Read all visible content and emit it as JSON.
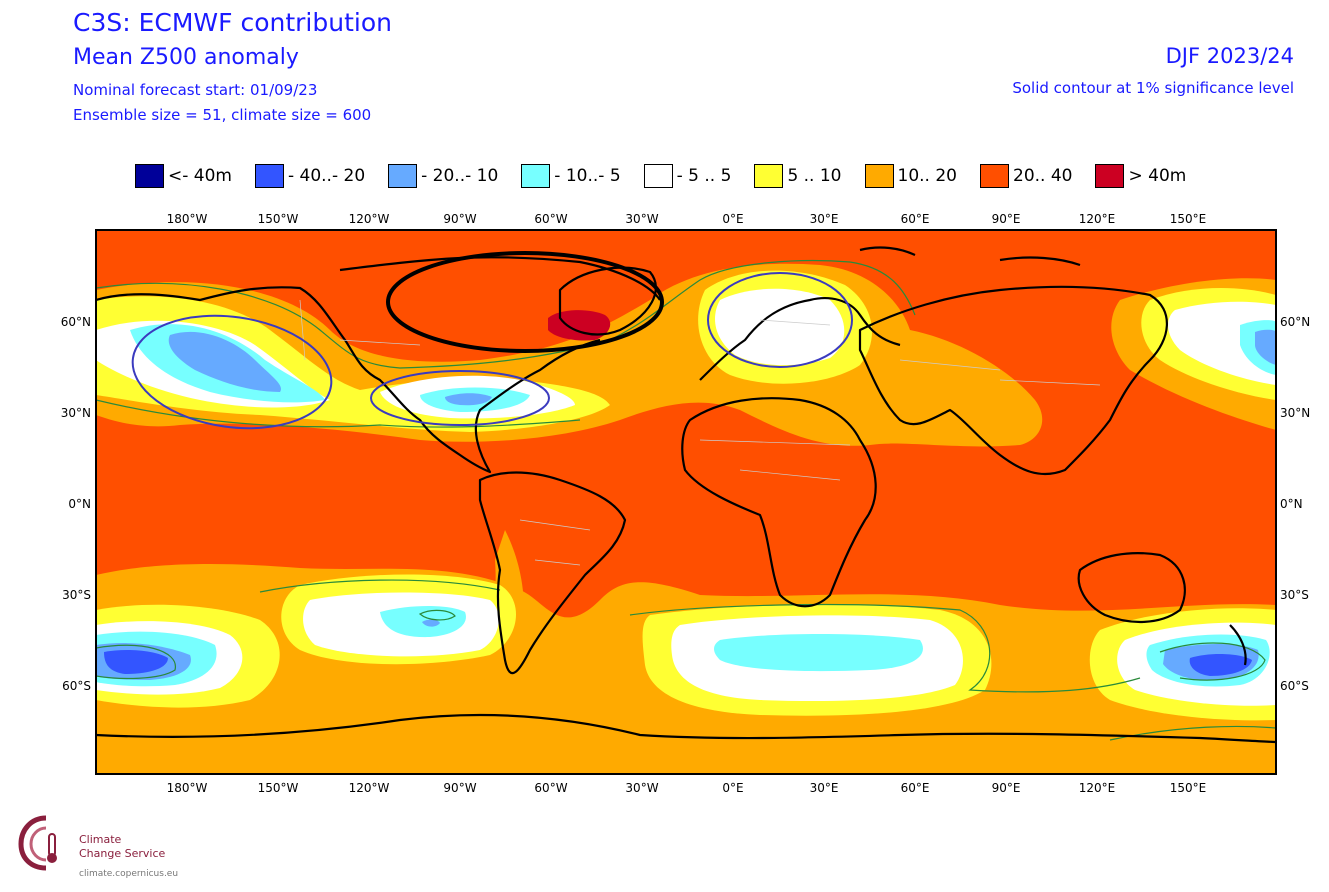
{
  "header": {
    "title_line1": "C3S: ECMWF contribution",
    "title_line2": "Mean Z500 anomaly",
    "forecast_start": "Nominal forecast start: 01/09/23",
    "ensemble_info": "Ensemble size = 51, climate size = 600",
    "season": "DJF 2023/24",
    "significance_note": "Solid contour at 1% significance level"
  },
  "legend": [
    {
      "label": "<- 40m",
      "color": "#000099"
    },
    {
      "label": "- 40..- 20",
      "color": "#3355ff"
    },
    {
      "label": "- 20..- 10",
      "color": "#66aaff"
    },
    {
      "label": "- 10..- 5",
      "color": "#77ffff"
    },
    {
      "label": "- 5 .. 5",
      "color": "#ffffff"
    },
    {
      "label": "5 .. 10",
      "color": "#ffff33"
    },
    {
      "label": "10.. 20",
      "color": "#ffaa00"
    },
    {
      "label": "20.. 40",
      "color": "#ff4f00"
    },
    {
      "label": ">  40m",
      "color": "#cc0022"
    }
  ],
  "axes": {
    "lon_ticks": [
      "180°W",
      "150°W",
      "120°W",
      "90°W",
      "60°W",
      "30°W",
      "0°E",
      "30°E",
      "60°E",
      "90°E",
      "120°E",
      "150°E"
    ],
    "lat_ticks": [
      "60°N",
      "30°N",
      "0°N",
      "30°S",
      "60°S"
    ]
  },
  "map": {
    "variable": "500 hPa geopotential height anomaly",
    "projection": "equirectangular"
  },
  "logo": {
    "line1": "Climate",
    "line2": "Change Service",
    "url": "climate.copernicus.eu"
  }
}
